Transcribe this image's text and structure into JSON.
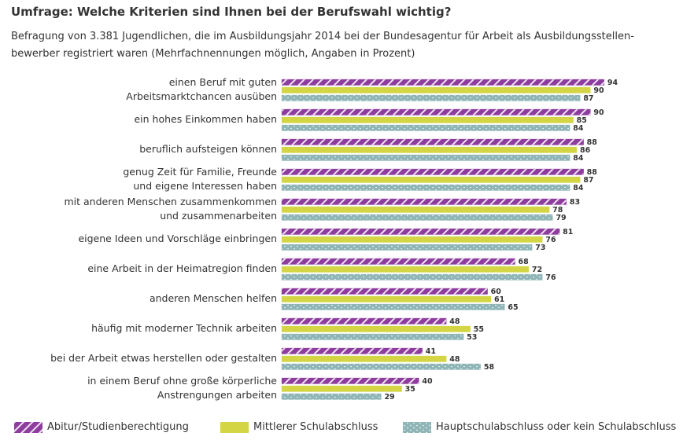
{
  "chart_data": {
    "type": "bar",
    "orientation": "horizontal",
    "title": "Umfrage: Welche Kriterien sind Ihnen bei der Berufswahl wichtig?",
    "subtitle": "Befragung von 3.381 Jugendlichen, die im Ausbildungsjahr 2014 bei der Bundesagentur für Arbeit als Ausbildungsstellen-\nbewerber registriert waren (Mehrfachnennungen möglich, Angaben in Prozent)",
    "categories": [
      "einen Beruf mit guten\nArbeitsmarktchancen ausüben",
      "ein hohes Einkommen haben",
      "beruflich aufsteigen können",
      "genug Zeit für Familie, Freunde\nund eigene Interessen haben",
      "mit anderen Menschen zusammenkommen\nund zusammenarbeiten",
      "eigene Ideen und Vorschläge einbringen",
      "eine Arbeit in der Heimatregion finden",
      "anderen Menschen helfen",
      "häufig mit moderner Technik arbeiten",
      "bei der Arbeit etwas herstellen oder gestalten",
      "in einem Beruf ohne große körperliche\nAnstrengungen arbeiten"
    ],
    "series": [
      {
        "name": "Abitur/Studienberechtigung",
        "color": "#8e3c9e",
        "values": [
          94,
          90,
          88,
          88,
          83,
          81,
          68,
          60,
          48,
          41,
          40
        ]
      },
      {
        "name": "Mittlerer Schulabschluss",
        "color": "#d3d544",
        "values": [
          90,
          85,
          86,
          87,
          78,
          76,
          72,
          61,
          55,
          48,
          35
        ]
      },
      {
        "name": "Hauptschulabschluss oder kein Schulabschluss",
        "color": "#8fb5b7",
        "values": [
          87,
          84,
          84,
          84,
          79,
          73,
          76,
          65,
          53,
          58,
          29
        ]
      }
    ]
  }
}
